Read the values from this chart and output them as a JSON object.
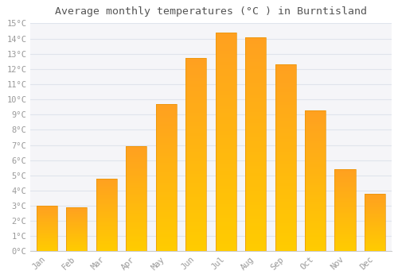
{
  "title": "Average monthly temperatures (°C ) in Burntisland",
  "months": [
    "Jan",
    "Feb",
    "Mar",
    "Apr",
    "May",
    "Jun",
    "Jul",
    "Aug",
    "Sep",
    "Oct",
    "Nov",
    "Dec"
  ],
  "values": [
    3.0,
    2.9,
    4.8,
    6.9,
    9.7,
    12.7,
    14.4,
    14.1,
    12.3,
    9.3,
    5.4,
    3.8
  ],
  "bar_color_bottom": "#FFCC00",
  "bar_color_top": "#FFA020",
  "ylim": [
    0,
    15
  ],
  "yticks": [
    0,
    1,
    2,
    3,
    4,
    5,
    6,
    7,
    8,
    9,
    10,
    11,
    12,
    13,
    14,
    15
  ],
  "grid_color": "#e0e4ec",
  "background_color": "#ffffff",
  "plot_bg_color": "#f5f5f8",
  "title_fontsize": 9.5,
  "tick_fontsize": 7.5,
  "font_family": "monospace",
  "tick_color": "#999999",
  "title_color": "#555555"
}
